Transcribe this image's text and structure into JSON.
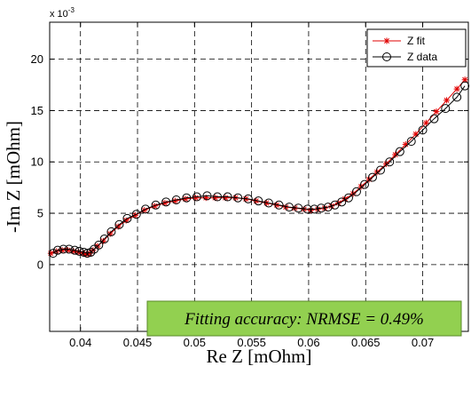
{
  "chart_data": {
    "type": "line",
    "title": "",
    "xlabel": "Re Z [mOhm]",
    "ylabel": "-Im Z [mOhm]",
    "y_exponent_label": "x 10",
    "y_exponent_power": "-3",
    "xlim": [
      0.0373,
      0.074
    ],
    "ylim": [
      -0.0065,
      0.0236
    ],
    "x_ticks": [
      0.04,
      0.045,
      0.05,
      0.055,
      0.06,
      0.065,
      0.07
    ],
    "x_tick_labels": [
      "0.04",
      "0.045",
      "0.05",
      "0.055",
      "0.06",
      "0.065",
      "0.07"
    ],
    "y_ticks": [
      0,
      0.005,
      0.01,
      0.015,
      0.02
    ],
    "y_tick_labels": [
      "0",
      "5",
      "10",
      "15",
      "20"
    ],
    "grid": true,
    "legend_position": "top-right",
    "annotation": "Fitting accuracy: NRMSE = 0.49%",
    "series": [
      {
        "name": "Z fit",
        "color": "#e00000",
        "marker": "asterisk",
        "x": [
          0.0374,
          0.0379,
          0.0384,
          0.0389,
          0.0394,
          0.0398,
          0.0402,
          0.0405,
          0.0408,
          0.0411,
          0.0415,
          0.042,
          0.0426,
          0.0433,
          0.044,
          0.0448,
          0.0456,
          0.0465,
          0.0474,
          0.0483,
          0.0492,
          0.0501,
          0.051,
          0.0518,
          0.0527,
          0.0536,
          0.0545,
          0.0554,
          0.0563,
          0.0572,
          0.058,
          0.0588,
          0.0596,
          0.0602,
          0.0608,
          0.0614,
          0.062,
          0.0626,
          0.0632,
          0.0639,
          0.0646,
          0.0653,
          0.066,
          0.0668,
          0.0676,
          0.0685,
          0.0694,
          0.0703,
          0.0712,
          0.0721,
          0.073,
          0.0737
        ],
        "y": [
          0.0011,
          0.0013,
          0.0014,
          0.0014,
          0.0013,
          0.0012,
          0.0011,
          0.001,
          0.0011,
          0.0014,
          0.0018,
          0.0023,
          0.003,
          0.0037,
          0.0043,
          0.0048,
          0.0053,
          0.0057,
          0.006,
          0.0062,
          0.0064,
          0.0065,
          0.0065,
          0.0065,
          0.0065,
          0.0065,
          0.0064,
          0.0062,
          0.006,
          0.0058,
          0.0056,
          0.0055,
          0.0054,
          0.0053,
          0.0054,
          0.0055,
          0.0057,
          0.006,
          0.0064,
          0.0069,
          0.0076,
          0.0083,
          0.009,
          0.0098,
          0.0107,
          0.0117,
          0.0127,
          0.0138,
          0.0149,
          0.016,
          0.0171,
          0.018
        ]
      },
      {
        "name": "Z data",
        "color": "#000000",
        "marker": "circle",
        "x": [
          0.0376,
          0.038,
          0.0385,
          0.039,
          0.0395,
          0.0399,
          0.0403,
          0.0406,
          0.0409,
          0.0412,
          0.0416,
          0.0421,
          0.0427,
          0.0434,
          0.0441,
          0.0449,
          0.0457,
          0.0466,
          0.0475,
          0.0484,
          0.0493,
          0.0502,
          0.0511,
          0.052,
          0.0529,
          0.0538,
          0.0547,
          0.0556,
          0.0565,
          0.0574,
          0.0583,
          0.0591,
          0.0599,
          0.0605,
          0.0611,
          0.0617,
          0.0623,
          0.0629,
          0.0635,
          0.0642,
          0.0649,
          0.0656,
          0.0663,
          0.0671,
          0.068,
          0.069,
          0.07,
          0.071,
          0.072,
          0.073,
          0.0737
        ],
        "y": [
          0.0011,
          0.0014,
          0.0015,
          0.0015,
          0.0014,
          0.0013,
          0.0012,
          0.0011,
          0.0012,
          0.0015,
          0.0019,
          0.0025,
          0.0032,
          0.0039,
          0.0045,
          0.0049,
          0.0054,
          0.0058,
          0.0061,
          0.0063,
          0.0065,
          0.0066,
          0.0067,
          0.0066,
          0.0066,
          0.0065,
          0.0064,
          0.0062,
          0.006,
          0.0058,
          0.0056,
          0.0055,
          0.0054,
          0.0054,
          0.0055,
          0.0056,
          0.0058,
          0.0061,
          0.0065,
          0.0071,
          0.0078,
          0.0085,
          0.0092,
          0.01,
          0.011,
          0.012,
          0.0131,
          0.0142,
          0.0152,
          0.0163,
          0.0174
        ]
      }
    ]
  }
}
